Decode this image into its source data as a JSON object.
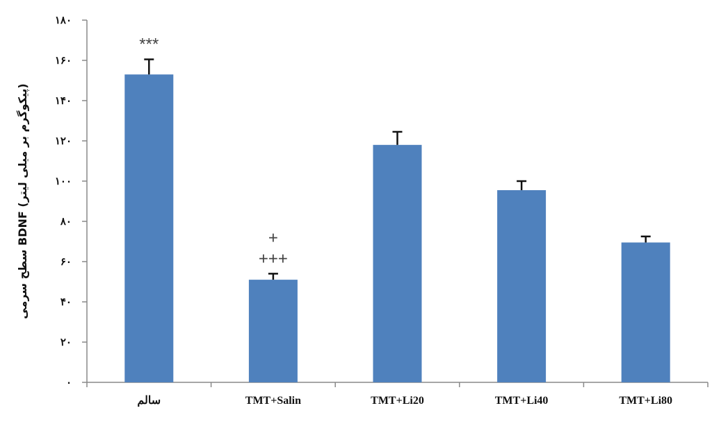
{
  "chart_data": {
    "type": "bar",
    "title": "",
    "xlabel": "",
    "ylabel": "سطح سرمی BDNF (پیکوگرم بر میلی لیتر)",
    "ylim": [
      0,
      180
    ],
    "yticks": [
      0,
      20,
      40,
      60,
      80,
      100,
      120,
      140,
      160,
      180
    ],
    "ytick_labels": [
      "۰",
      "۲۰",
      "۴۰",
      "۶۰",
      "۸۰",
      "۱۰۰",
      "۱۲۰",
      "۱۴۰",
      "۱۶۰",
      "۱۸۰"
    ],
    "categories": [
      "سالم",
      "TMT+Salin",
      "TMT+Li20",
      "TMT+Li40",
      "TMT+Li80"
    ],
    "values": [
      153,
      51,
      118,
      95.5,
      69.5
    ],
    "errors": [
      7.5,
      3,
      6.5,
      4.5,
      3
    ],
    "annotations": [
      {
        "category": 0,
        "lines": [
          "***"
        ]
      },
      {
        "category": 1,
        "lines": [
          "+",
          "+++"
        ]
      }
    ],
    "bar_color": "#4f81bd",
    "grid": false,
    "legend": "none"
  }
}
